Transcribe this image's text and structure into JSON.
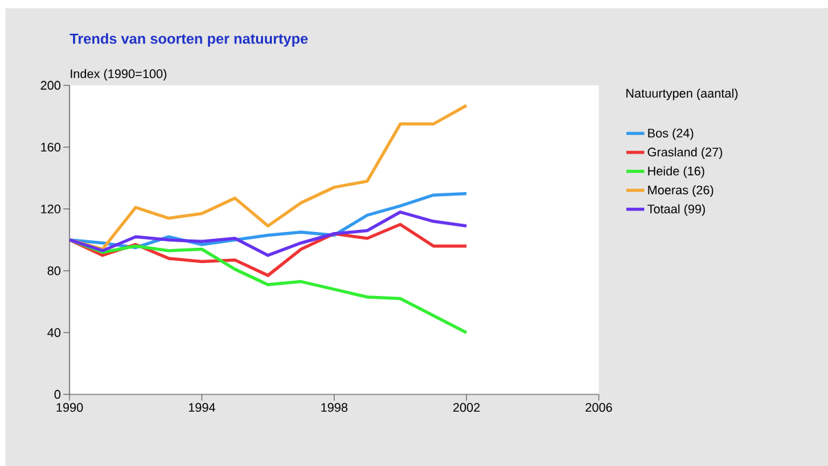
{
  "chart_data": {
    "type": "line",
    "title": "Trends van soorten per natuurtype",
    "ylabel": "Index (1990=100)",
    "legend_title": "Natuurtypen (aantal)",
    "x": [
      1990,
      1991,
      1992,
      1993,
      1994,
      1995,
      1996,
      1997,
      1998,
      1999,
      2000,
      2001,
      2002
    ],
    "series": [
      {
        "name": "Bos (24)",
        "color": "#3399ee",
        "values": [
          100,
          98,
          95,
          102,
          97,
          100,
          103,
          105,
          103,
          116,
          122,
          129,
          130
        ]
      },
      {
        "name": "Grasland (27)",
        "color": "#ee3333",
        "values": [
          100,
          90,
          97,
          88,
          86,
          87,
          77,
          94,
          104,
          101,
          110,
          96,
          96
        ]
      },
      {
        "name": "Heide (16)",
        "color": "#33ee33",
        "values": [
          100,
          92,
          96,
          93,
          94,
          81,
          71,
          73,
          68,
          63,
          62,
          51,
          40
        ]
      },
      {
        "name": "Moeras (26)",
        "color": "#f5a833",
        "values": [
          100,
          94,
          121,
          114,
          117,
          127,
          109,
          124,
          134,
          138,
          175,
          175,
          187
        ]
      },
      {
        "name": "Totaal (99)",
        "color": "#6633ee",
        "values": [
          100,
          93,
          102,
          100,
          99,
          101,
          90,
          98,
          104,
          106,
          118,
          112,
          109
        ]
      }
    ],
    "xlim": [
      1990,
      2006
    ],
    "xticks": [
      1990,
      1994,
      1998,
      2002,
      2006
    ],
    "ylim": [
      0,
      200
    ],
    "yticks": [
      0,
      40,
      80,
      120,
      160,
      200
    ],
    "legend": "right",
    "grid": false,
    "marker": "none",
    "line_style": "solid"
  }
}
